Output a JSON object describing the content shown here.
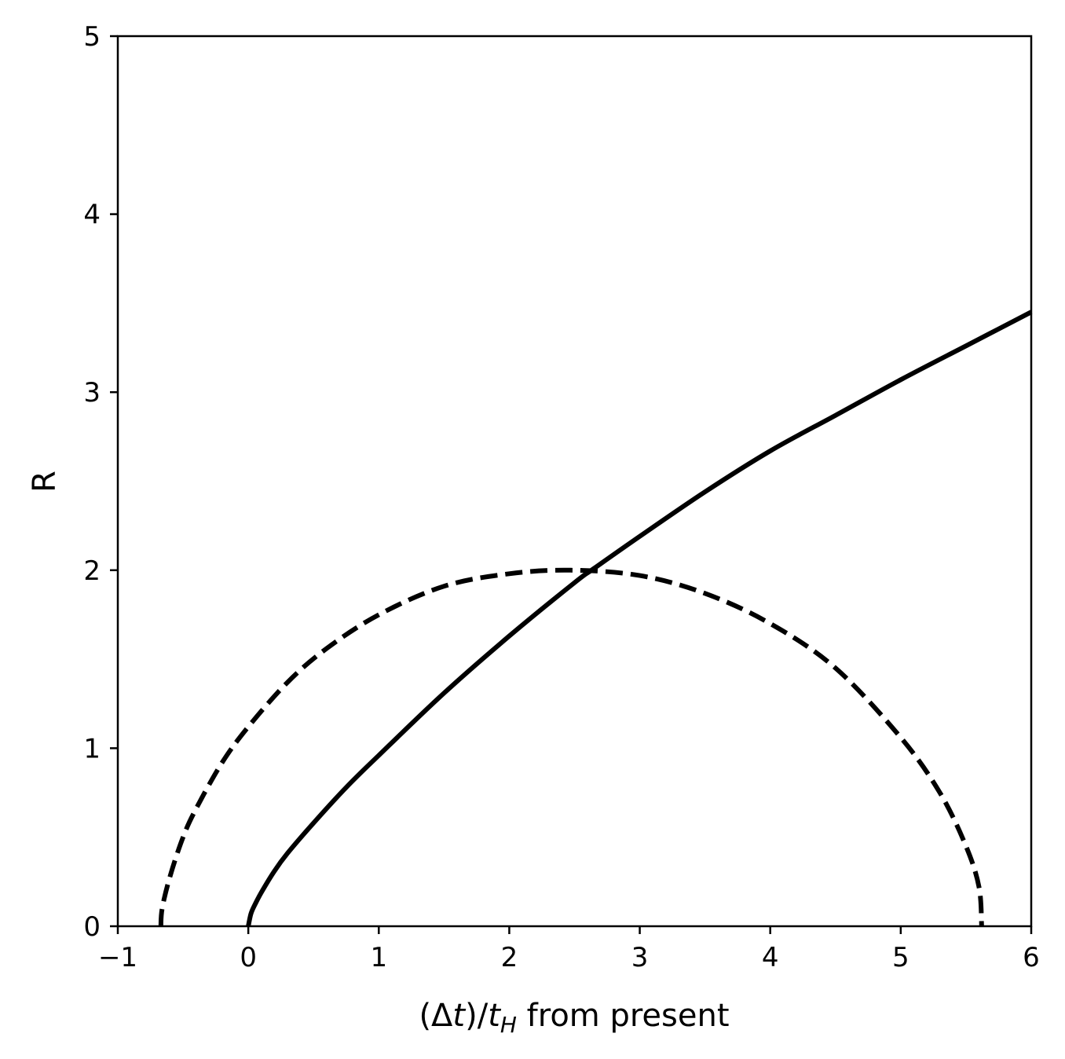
{
  "chart_data": {
    "type": "line",
    "title": "",
    "xlabel": {
      "pre": "(Δ",
      "var1": "t",
      "mid": ")/",
      "var2": "t",
      "sub": "H",
      "post": " from present"
    },
    "ylabel": "R",
    "xlim": [
      -1,
      6
    ],
    "ylim": [
      0,
      5
    ],
    "xticks": [
      -1,
      0,
      1,
      2,
      3,
      4,
      5,
      6
    ],
    "xtick_labels": [
      "−1",
      "0",
      "1",
      "2",
      "3",
      "4",
      "5",
      "6"
    ],
    "yticks": [
      0,
      1,
      2,
      3,
      4,
      5
    ],
    "ytick_labels": [
      "0",
      "1",
      "2",
      "3",
      "4",
      "5"
    ],
    "grid": false,
    "legend": "none",
    "series": [
      {
        "style": "solid",
        "color": "#000000",
        "x": [
          0.0,
          0.02,
          0.05,
          0.1,
          0.2,
          0.3,
          0.5,
          0.75,
          1.0,
          1.5,
          2.0,
          2.5,
          2.65,
          3.0,
          3.5,
          4.0,
          4.5,
          5.0,
          5.5,
          6.0
        ],
        "y": [
          0.0,
          0.07,
          0.12,
          0.19,
          0.31,
          0.41,
          0.58,
          0.78,
          0.96,
          1.31,
          1.63,
          1.93,
          2.01,
          2.19,
          2.44,
          2.67,
          2.87,
          3.07,
          3.26,
          3.45
        ]
      },
      {
        "style": "dashed",
        "color": "#000000",
        "x": [
          -0.67,
          -0.66,
          -0.6,
          -0.5,
          -0.4,
          -0.2,
          0.0,
          0.3,
          0.6,
          1.0,
          1.5,
          2.0,
          2.47,
          3.0,
          3.5,
          4.0,
          4.5,
          5.0,
          5.3,
          5.5,
          5.6,
          5.62
        ],
        "y": [
          0.0,
          0.1,
          0.28,
          0.5,
          0.66,
          0.92,
          1.12,
          1.37,
          1.56,
          1.75,
          1.91,
          1.98,
          2.0,
          1.97,
          1.87,
          1.7,
          1.45,
          1.06,
          0.75,
          0.45,
          0.22,
          0.0
        ]
      }
    ]
  }
}
